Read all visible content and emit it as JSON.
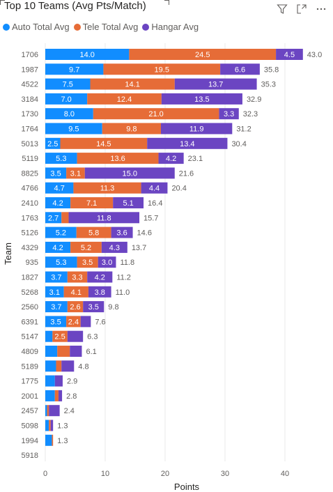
{
  "title": "Top 10 Teams (Avg Pts/Match)",
  "header_icons": [
    "filter-icon",
    "focus-mode-icon",
    "more-options-icon"
  ],
  "colors": {
    "auto": "#118dff",
    "tele": "#e66c37",
    "hangar": "#6b45c2",
    "grid": "#e8e8e8",
    "text": "#605e5c"
  },
  "chart_data": {
    "type": "bar",
    "orientation": "horizontal",
    "stacked": true,
    "title": "Top 10 Teams (Avg Pts/Match)",
    "xlabel": "Points",
    "ylabel": "Team",
    "xlim": [
      0,
      45
    ],
    "xticks": [
      "0",
      "10",
      "20",
      "30",
      "40"
    ],
    "legend_position": "top-left",
    "categories": [
      "1706",
      "1987",
      "4522",
      "3184",
      "1730",
      "1764",
      "5013",
      "5119",
      "8825",
      "4766",
      "2410",
      "1763",
      "5126",
      "4329",
      "935",
      "1827",
      "5268",
      "2560",
      "6391",
      "5147",
      "4809",
      "5189",
      "1775",
      "2001",
      "2457",
      "5098",
      "1994",
      "5918"
    ],
    "series": [
      {
        "name": "Auto Total Avg",
        "values": [
          14.0,
          9.7,
          7.5,
          7.0,
          8.0,
          9.5,
          2.5,
          5.3,
          3.5,
          4.7,
          4.2,
          2.7,
          5.2,
          4.2,
          5.3,
          3.7,
          3.1,
          3.7,
          3.5,
          1.2,
          2.0,
          1.8,
          1.6,
          1.6,
          0.3,
          0.6,
          1.1,
          0
        ]
      },
      {
        "name": "Tele Total Avg",
        "values": [
          24.5,
          19.5,
          14.1,
          12.4,
          21.0,
          9.8,
          14.5,
          13.6,
          3.1,
          11.3,
          7.1,
          1.2,
          5.8,
          5.2,
          3.5,
          3.3,
          4.1,
          2.6,
          2.4,
          2.5,
          2.1,
          0.9,
          0,
          0.6,
          0.3,
          0.3,
          0.2,
          0
        ]
      },
      {
        "name": "Hangar Avg",
        "values": [
          4.5,
          6.6,
          13.7,
          13.5,
          3.3,
          11.9,
          13.4,
          4.2,
          15.0,
          4.4,
          5.1,
          11.8,
          3.6,
          4.3,
          3.0,
          4.2,
          3.8,
          3.5,
          1.7,
          2.6,
          2.0,
          2.1,
          1.3,
          0.6,
          1.8,
          0.4,
          0,
          0
        ]
      }
    ],
    "segment_labels": [
      [
        "14.0",
        "24.5",
        "4.5"
      ],
      [
        "9.7",
        "19.5",
        "6.6"
      ],
      [
        "7.5",
        "14.1",
        "13.7"
      ],
      [
        "7.0",
        "12.4",
        "13.5"
      ],
      [
        "8.0",
        "21.0",
        "3.3"
      ],
      [
        "9.5",
        "9.8",
        "11.9"
      ],
      [
        "2.5",
        "14.5",
        "13.4"
      ],
      [
        "5.3",
        "13.6",
        "4.2"
      ],
      [
        "3.5",
        "3.1",
        "15.0"
      ],
      [
        "4.7",
        "11.3",
        "4.4"
      ],
      [
        "4.2",
        "7.1",
        "5.1"
      ],
      [
        "2.7",
        "",
        "11.8"
      ],
      [
        "5.2",
        "5.8",
        "3.6"
      ],
      [
        "4.2",
        "5.2",
        "4.3"
      ],
      [
        "5.3",
        "3.5",
        "3.0"
      ],
      [
        "3.7",
        "3.3",
        "4.2"
      ],
      [
        "3.1",
        "4.1",
        "3.8"
      ],
      [
        "3.7",
        "2.6",
        "3.5"
      ],
      [
        "3.5",
        "2.4",
        ""
      ],
      [
        "",
        "2.5",
        ""
      ],
      [
        "",
        "",
        ""
      ],
      [
        "",
        "",
        ""
      ],
      [
        "",
        "",
        ""
      ],
      [
        "",
        "",
        ""
      ],
      [
        "",
        "",
        ""
      ],
      [
        "",
        "",
        ""
      ],
      [
        "",
        "",
        ""
      ],
      [
        "",
        "",
        ""
      ]
    ],
    "totals": [
      "43.0",
      "35.8",
      "35.3",
      "32.9",
      "32.3",
      "31.2",
      "30.4",
      "23.1",
      "21.6",
      "20.4",
      "16.4",
      "15.7",
      "14.6",
      "13.7",
      "11.8",
      "11.2",
      "11.0",
      "9.8",
      "7.6",
      "6.3",
      "6.1",
      "4.8",
      "2.9",
      "2.8",
      "2.4",
      "1.3",
      "1.3",
      ""
    ]
  }
}
